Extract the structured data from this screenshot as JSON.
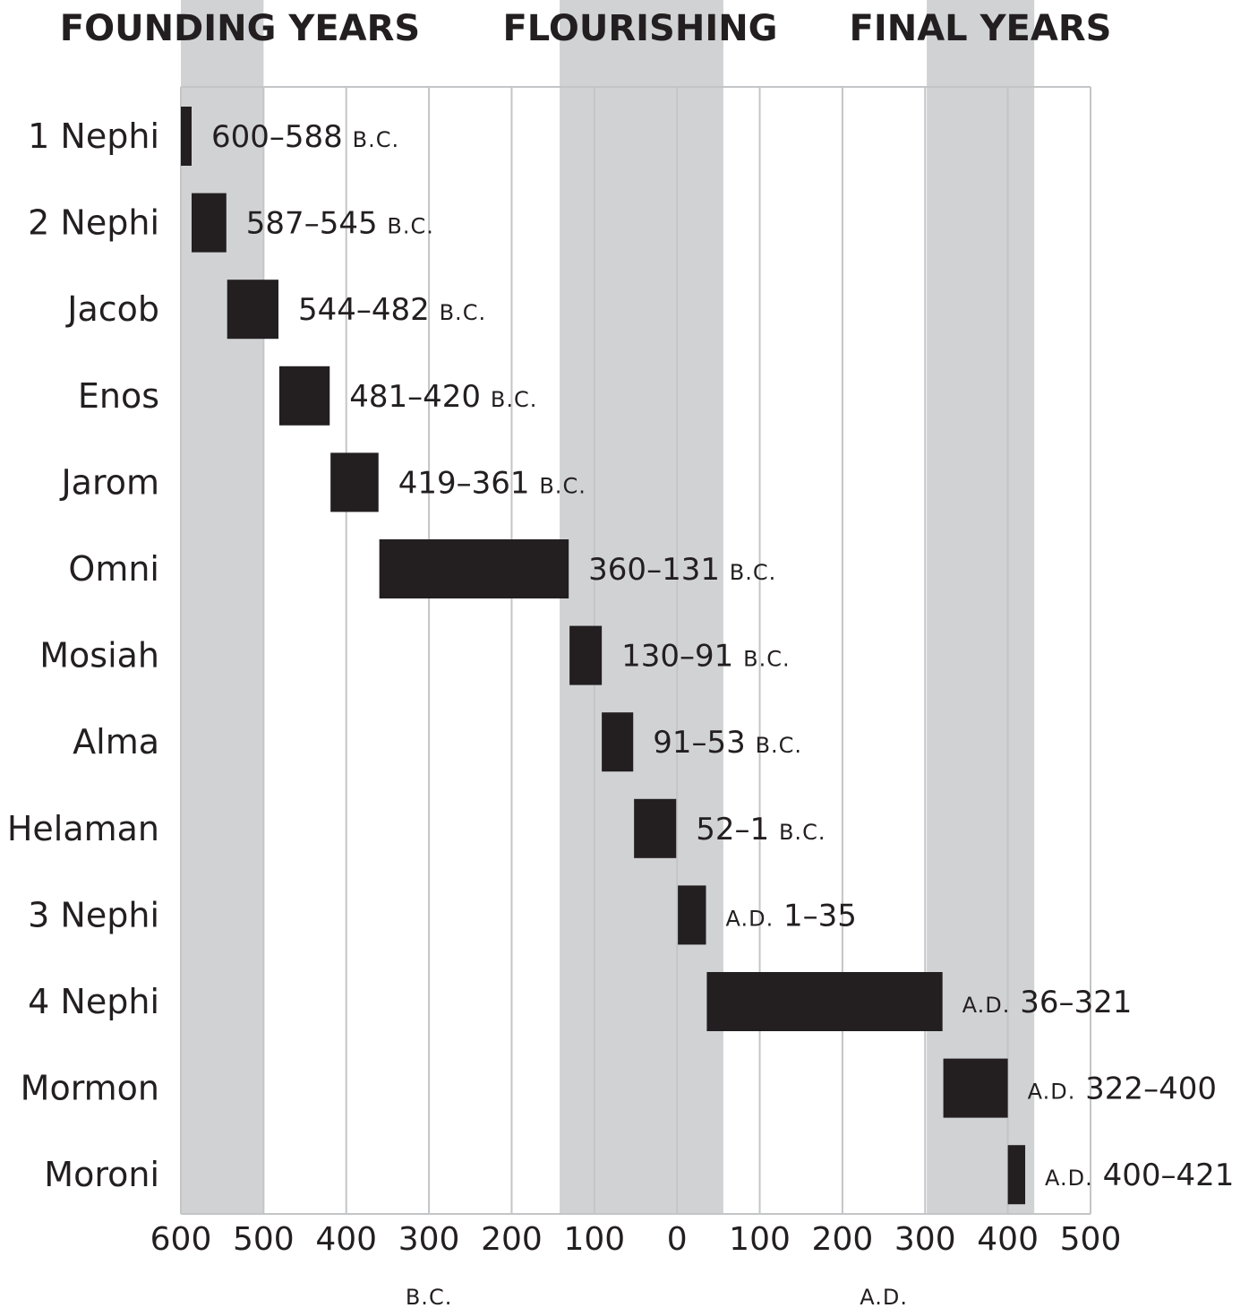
{
  "chart_data": {
    "type": "bar",
    "orientation": "horizontal-timeline",
    "x_axis": {
      "min": -600,
      "max": 500,
      "ticks": [
        -600,
        -500,
        -400,
        -300,
        -200,
        -100,
        0,
        100,
        200,
        300,
        400,
        500
      ],
      "tick_labels": [
        "600",
        "500",
        "400",
        "300",
        "200",
        "100",
        "0",
        "100",
        "200",
        "300",
        "400",
        "500"
      ],
      "grid": true,
      "side_labels": {
        "bc": "B.C.",
        "ad": "A.D."
      }
    },
    "eras": [
      {
        "label": "FOUNDING YEARS",
        "start": -600,
        "end": -500
      },
      {
        "label": "FLOURISHING",
        "start": -142,
        "end": 56
      },
      {
        "label": "FINAL YEARS",
        "start": 302,
        "end": 432
      }
    ],
    "bars": [
      {
        "book": "1 Nephi",
        "start": -600,
        "end": -588,
        "range": "600–588",
        "era": "B.C.",
        "era_first": false
      },
      {
        "book": "2 Nephi",
        "start": -587,
        "end": -545,
        "range": "587–545",
        "era": "B.C.",
        "era_first": false
      },
      {
        "book": "Jacob",
        "start": -544,
        "end": -482,
        "range": "544–482",
        "era": "B.C.",
        "era_first": false
      },
      {
        "book": "Enos",
        "start": -481,
        "end": -420,
        "range": "481–420",
        "era": "B.C.",
        "era_first": false
      },
      {
        "book": "Jarom",
        "start": -419,
        "end": -361,
        "range": "419–361",
        "era": "B.C.",
        "era_first": false
      },
      {
        "book": "Omni",
        "start": -360,
        "end": -131,
        "range": "360–131",
        "era": "B.C.",
        "era_first": false
      },
      {
        "book": "Mosiah",
        "start": -130,
        "end": -91,
        "range": "130–91",
        "era": "B.C.",
        "era_first": false
      },
      {
        "book": "Alma",
        "start": -91,
        "end": -53,
        "range": "91–53",
        "era": "B.C.",
        "era_first": false
      },
      {
        "book": "Helaman",
        "start": -52,
        "end": -1,
        "range": "52–1",
        "era": "B.C.",
        "era_first": false
      },
      {
        "book": "3 Nephi",
        "start": 1,
        "end": 35,
        "range": "1–35",
        "era": "A.D.",
        "era_first": true
      },
      {
        "book": "4 Nephi",
        "start": 36,
        "end": 321,
        "range": "36–321",
        "era": "A.D.",
        "era_first": true
      },
      {
        "book": "Mormon",
        "start": 322,
        "end": 400,
        "range": "322–400",
        "era": "A.D.",
        "era_first": true
      },
      {
        "book": "Moroni",
        "start": 400,
        "end": 421,
        "range": "400–421",
        "era": "A.D.",
        "era_first": true
      }
    ],
    "colors": {
      "bar": "#231f20",
      "era_band": "#d1d2d4",
      "grid": "#c4c5c7",
      "text": "#231f20"
    }
  }
}
